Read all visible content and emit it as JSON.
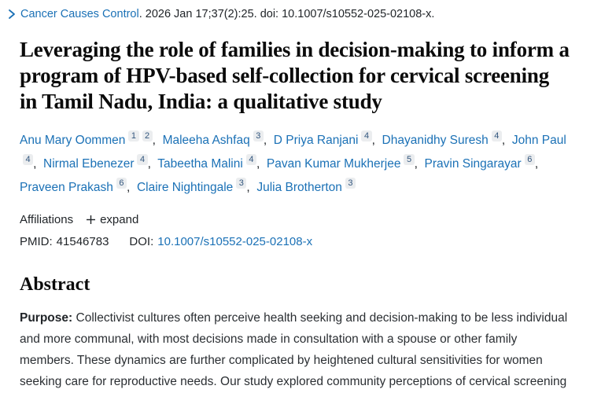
{
  "colors": {
    "link_blue": "#1b71b6",
    "text_dark": "#212529",
    "superscript_pill_bg": "#ebedef",
    "superscript_pill_text": "#32567e"
  },
  "citation": {
    "chevron_icon": "chevron-right",
    "journal": "Cancer Causes Control",
    "rest": ". 2026 Jan 17;37(2):25. doi: 10.1007/s10552-025-02108-x."
  },
  "title": "Leveraging the role of families in decision-making to inform a program of HPV-based self-collection for cervical screening in Tamil Nadu, India: a qualitative study",
  "authors": [
    {
      "name": "Anu Mary Oommen",
      "sups": [
        "1",
        "2"
      ]
    },
    {
      "name": "Maleeha Ashfaq",
      "sups": [
        "3"
      ]
    },
    {
      "name": "D Priya Ranjani",
      "sups": [
        "4"
      ]
    },
    {
      "name": "Dhayanidhy Suresh",
      "sups": [
        "4"
      ]
    },
    {
      "name": "John Paul",
      "sups": [
        "4"
      ]
    },
    {
      "name": "Nirmal Ebenezer",
      "sups": [
        "4"
      ]
    },
    {
      "name": "Tabeetha Malini",
      "sups": [
        "4"
      ]
    },
    {
      "name": "Pavan Kumar Mukherjee",
      "sups": [
        "5"
      ]
    },
    {
      "name": "Pravin Singarayar",
      "sups": [
        "6"
      ]
    },
    {
      "name": "Praveen Prakash",
      "sups": [
        "6"
      ]
    },
    {
      "name": "Claire Nightingale",
      "sups": [
        "3"
      ]
    },
    {
      "name": "Julia Brotherton",
      "sups": [
        "3"
      ]
    }
  ],
  "affiliations": {
    "label": "Affiliations",
    "plus_icon": "plus",
    "expand_label": "expand"
  },
  "ids": {
    "pmid_label": "PMID:",
    "pmid_value": "41546783",
    "doi_label": "DOI:",
    "doi_value": "10.1007/s10552-025-02108-x"
  },
  "abstract": {
    "heading": "Abstract",
    "purpose_label": "Purpose:",
    "purpose_text": "Collectivist cultures often perceive health seeking and decision-making to be less individual and more communal, with most decisions made in consultation with a spouse or other family members. These dynamics are further complicated by heightened cultural sensitivities for women seeking care for reproductive needs. Our study explored community perceptions of cervical screening"
  }
}
